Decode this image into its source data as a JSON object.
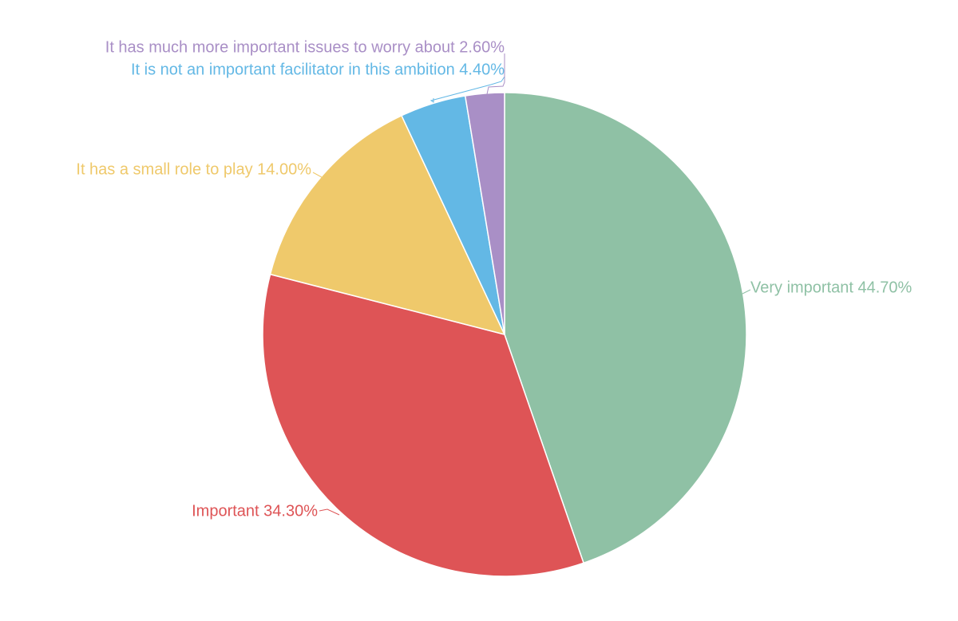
{
  "chart_data": {
    "type": "pie",
    "title": "",
    "slices": [
      {
        "label": "Very important",
        "value": 44.7,
        "display": "44.70%",
        "color": "#8fc1a5"
      },
      {
        "label": "Important",
        "value": 34.3,
        "display": "34.30%",
        "color": "#de5456"
      },
      {
        "label": "It has a small role to play",
        "value": 14.0,
        "display": "14.00%",
        "color": "#efc96b"
      },
      {
        "label": "It is not an important facilitator in this ambition",
        "value": 4.4,
        "display": "4.40%",
        "color": "#63b8e5"
      },
      {
        "label": "It has much more important issues to worry about",
        "value": 2.6,
        "display": "2.60%",
        "color": "#a98fc6"
      }
    ],
    "start_angle": "top",
    "direction": "clockwise",
    "legend": "none",
    "data_labels": "outside"
  }
}
